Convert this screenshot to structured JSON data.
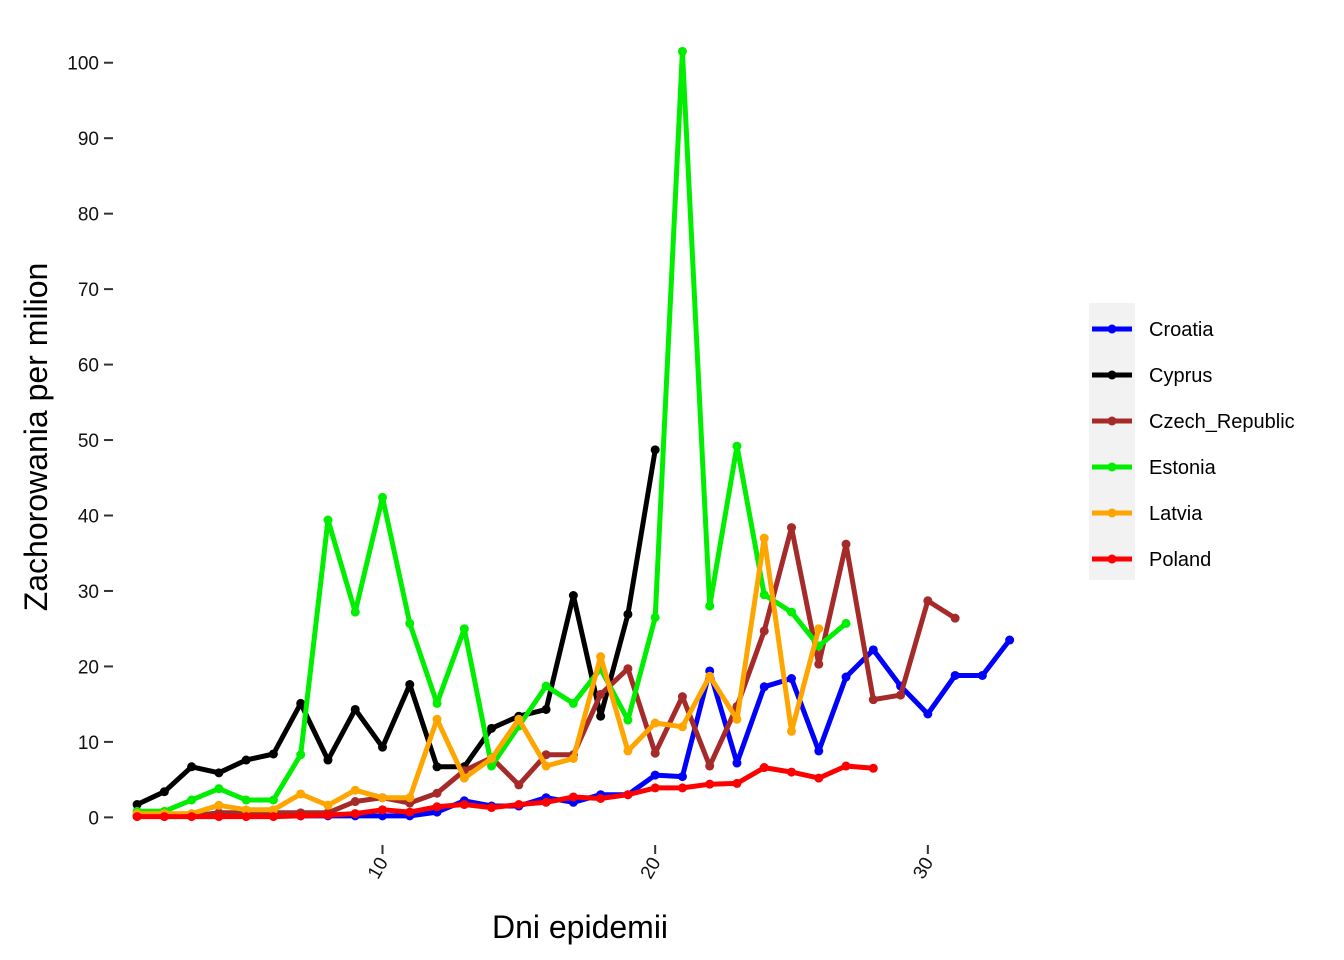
{
  "chart_data": {
    "type": "line",
    "xlabel": "Dni epidemii",
    "ylabel": "Zachorowania per milion",
    "xlim": [
      0.3,
      34.7
    ],
    "ylim": [
      -3,
      105
    ],
    "x_ticks": [
      10,
      20,
      30
    ],
    "y_ticks": [
      0,
      10,
      20,
      30,
      40,
      50,
      60,
      70,
      80,
      90,
      100
    ],
    "grid": false,
    "legend_position": "right",
    "series": [
      {
        "name": "Croatia",
        "color": "#0000ff",
        "x": [
          1,
          2,
          3,
          4,
          5,
          6,
          7,
          8,
          9,
          10,
          11,
          12,
          13,
          14,
          15,
          16,
          17,
          18,
          19,
          20,
          21,
          22,
          23,
          24,
          25,
          26,
          27,
          28,
          29,
          30,
          31,
          32,
          33
        ],
        "y": [
          0.2,
          0.2,
          0.2,
          0.2,
          0.2,
          0.2,
          0.2,
          0.2,
          0.2,
          0.2,
          0.2,
          0.7,
          2.2,
          1.5,
          1.5,
          2.6,
          2.0,
          3.0,
          3.0,
          5.6,
          5.4,
          19.4,
          7.2,
          17.3,
          18.4,
          8.8,
          18.6,
          22.2,
          17.4,
          13.7,
          18.8,
          18.8,
          23.5
        ]
      },
      {
        "name": "Cyprus",
        "color": "#000000",
        "x": [
          1,
          2,
          3,
          4,
          5,
          6,
          7,
          8,
          9,
          10,
          11,
          12,
          13,
          14,
          15,
          16,
          17,
          18,
          19,
          20
        ],
        "y": [
          1.7,
          3.4,
          6.7,
          5.9,
          7.6,
          8.4,
          15.1,
          7.6,
          14.3,
          9.3,
          17.6,
          6.7,
          6.7,
          11.8,
          13.4,
          14.3,
          29.4,
          13.4,
          26.9,
          48.7
        ]
      },
      {
        "name": "Czech_Republic",
        "color": "#a52a2a",
        "x": [
          1,
          2,
          3,
          4,
          5,
          6,
          7,
          8,
          9,
          10,
          11,
          12,
          13,
          14,
          15,
          16,
          17,
          18,
          19,
          20,
          21,
          22,
          23,
          24,
          25,
          26,
          27,
          28,
          29,
          30,
          31
        ],
        "y": [
          0.2,
          0.2,
          0.2,
          0.6,
          0.6,
          0.6,
          0.6,
          0.6,
          2.1,
          2.6,
          1.9,
          3.2,
          6.2,
          7.9,
          4.3,
          8.3,
          8.3,
          16.3,
          19.7,
          8.5,
          16.0,
          6.8,
          14.7,
          24.7,
          38.4,
          20.3,
          36.2,
          15.6,
          16.2,
          28.7,
          26.4
        ]
      },
      {
        "name": "Estonia",
        "color": "#00ee00",
        "x": [
          1,
          2,
          3,
          4,
          5,
          6,
          7,
          8,
          9,
          10,
          11,
          12,
          13,
          14,
          15,
          16,
          17,
          18,
          19,
          20,
          21,
          22,
          23,
          24,
          25,
          26,
          27
        ],
        "y": [
          0.8,
          0.8,
          2.3,
          3.8,
          2.3,
          2.3,
          8.3,
          39.4,
          27.2,
          42.4,
          25.7,
          15.1,
          25.0,
          6.8,
          12.1,
          17.4,
          15.1,
          19.7,
          12.9,
          26.5,
          101.5,
          28.0,
          49.2,
          29.5,
          27.2,
          22.7,
          25.7
        ]
      },
      {
        "name": "Latvia",
        "color": "#ffa500",
        "x": [
          1,
          2,
          3,
          4,
          5,
          6,
          7,
          8,
          9,
          10,
          11,
          12,
          13,
          14,
          15,
          16,
          17,
          18,
          19,
          20,
          21,
          22,
          23,
          24,
          25,
          26
        ],
        "y": [
          0.5,
          0.5,
          0.5,
          1.6,
          1.0,
          1.0,
          3.1,
          1.6,
          3.6,
          2.6,
          2.6,
          13.0,
          5.2,
          7.8,
          13.0,
          6.8,
          7.8,
          21.3,
          8.8,
          12.5,
          12.0,
          18.7,
          13.0,
          37.0,
          11.4,
          25.0
        ]
      },
      {
        "name": "Poland",
        "color": "#ff0000",
        "x": [
          1,
          2,
          3,
          4,
          5,
          6,
          7,
          8,
          9,
          10,
          11,
          12,
          13,
          14,
          15,
          16,
          17,
          18,
          19,
          20,
          21,
          22,
          23,
          24,
          25,
          26,
          27,
          28
        ],
        "y": [
          0.1,
          0.1,
          0.1,
          0.1,
          0.1,
          0.1,
          0.2,
          0.3,
          0.5,
          1.0,
          0.7,
          1.4,
          1.7,
          1.3,
          1.7,
          2.0,
          2.7,
          2.5,
          3.0,
          3.9,
          3.9,
          4.4,
          4.5,
          6.6,
          6.0,
          5.2,
          6.8,
          6.5
        ]
      }
    ]
  }
}
